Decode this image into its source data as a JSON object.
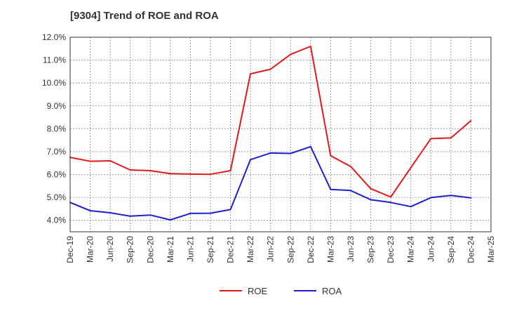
{
  "chart_data": {
    "type": "line",
    "title": "[9304]  Trend of ROE and ROA",
    "xlabel": "",
    "ylabel": "",
    "categories": [
      "Dec-19",
      "Mar-20",
      "Jun-20",
      "Sep-20",
      "Dec-20",
      "Mar-21",
      "Jun-21",
      "Sep-21",
      "Dec-21",
      "Mar-22",
      "Jun-22",
      "Sep-22",
      "Dec-22",
      "Mar-23",
      "Jun-23",
      "Sep-23",
      "Dec-23",
      "Mar-24",
      "Jun-24",
      "Sep-24",
      "Dec-24",
      "Mar-25"
    ],
    "y_ticks": [
      "4.0%",
      "5.0%",
      "6.0%",
      "7.0%",
      "8.0%",
      "9.0%",
      "10.0%",
      "11.0%",
      "12.0%"
    ],
    "ylim": [
      3.5,
      12.0
    ],
    "grid": true,
    "legend_position": "bottom",
    "series": [
      {
        "name": "ROE",
        "color": "#e31a1c",
        "values": [
          6.75,
          6.58,
          6.6,
          6.2,
          6.17,
          6.04,
          6.02,
          6.01,
          6.17,
          10.4,
          10.6,
          11.25,
          11.6,
          6.82,
          6.35,
          5.38,
          5.02,
          6.3,
          7.57,
          7.6,
          8.35,
          null
        ]
      },
      {
        "name": "ROA",
        "color": "#1f1fd0",
        "values": [
          4.78,
          4.42,
          4.33,
          4.18,
          4.23,
          4.02,
          4.3,
          4.31,
          4.47,
          6.65,
          6.94,
          6.92,
          7.22,
          5.35,
          5.3,
          4.9,
          4.78,
          4.6,
          4.99,
          5.09,
          4.98,
          null
        ]
      }
    ]
  }
}
